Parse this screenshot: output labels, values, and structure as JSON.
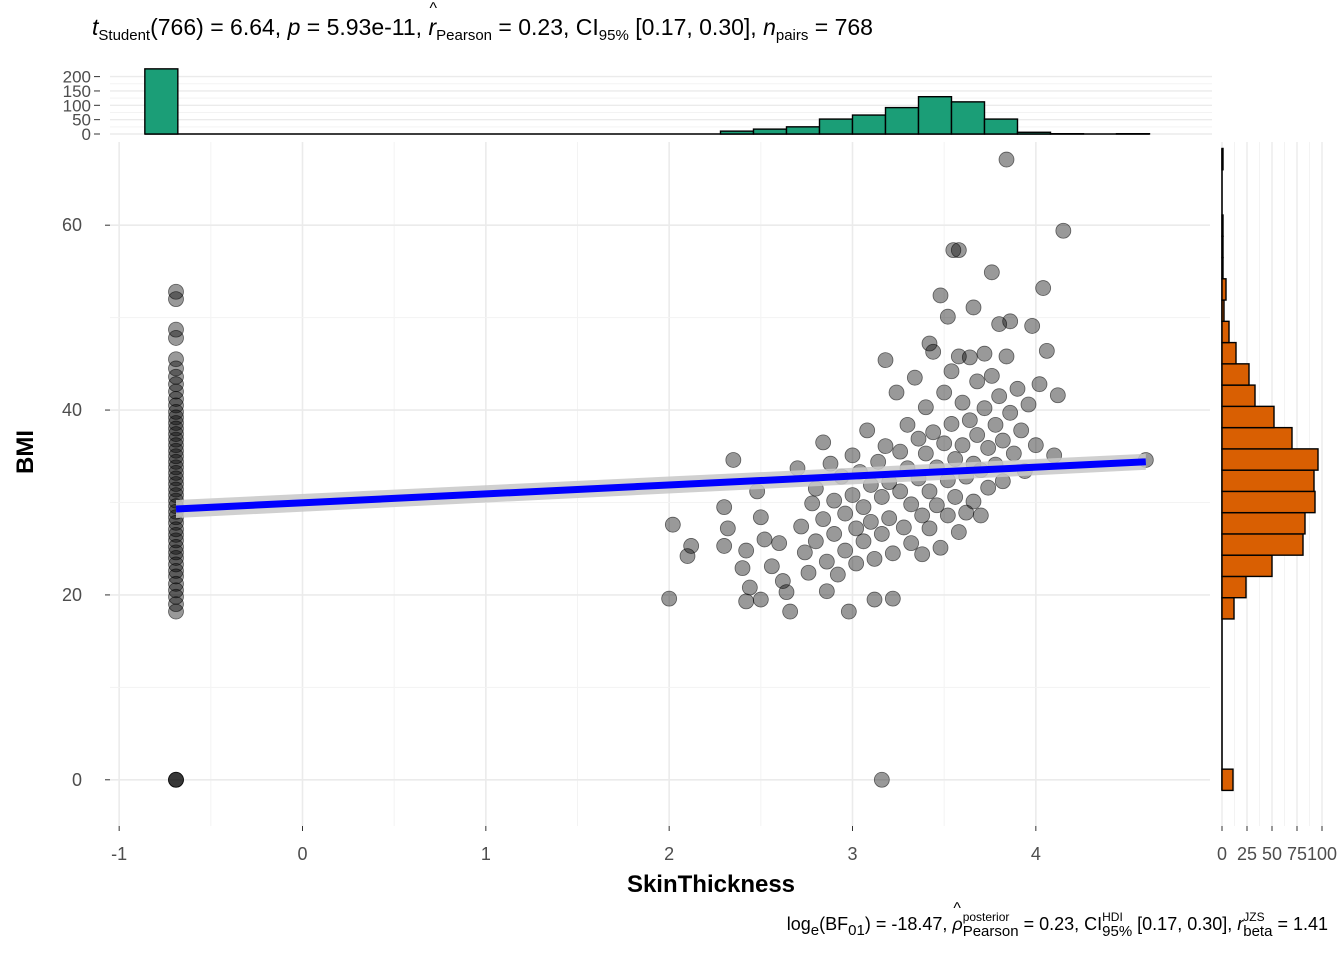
{
  "title": {
    "parts": {
      "t": "t",
      "t_sub": "Student",
      "df": "(766)",
      "eq1": " = 6.64, ",
      "p": "p",
      "p_eq": " = 5.93e-11, ",
      "r": "r",
      "r_sub": "Pearson",
      "r_eq": " = 0.23, CI",
      "ci_sub": "95%",
      "ci_val": " [0.17, 0.30], ",
      "n": "n",
      "n_sub": "pairs",
      "n_eq": " = 768"
    }
  },
  "caption": {
    "parts": {
      "log": "log",
      "log_sub": "e",
      "bf": "(BF",
      "bf_sub": "01",
      "bf_eq": ") = -18.47, ",
      "rho": "ρ",
      "rho_sup": "posterior",
      "rho_sub": "Pearson",
      "rho_eq": " = 0.23, CI",
      "hdi_sup": "HDI",
      "hdi_sub": "95%",
      "hdi_val": " [0.17, 0.30], ",
      "r": "r",
      "r_sup": "JZS",
      "r_sub": "beta",
      "r_eq": " = 1.41"
    }
  },
  "chart_data": {
    "type": "scatter",
    "xlabel": "SkinThickness",
    "ylabel": "BMI",
    "xlim": [
      -1.05,
      4.95
    ],
    "ylim": [
      -5,
      69
    ],
    "x_ticks": [
      -1,
      0,
      1,
      2,
      3,
      4
    ],
    "x_tick_labels": [
      "-1",
      "0",
      "1",
      "2",
      "3",
      "4"
    ],
    "y_ticks": [
      0,
      20,
      40,
      60
    ],
    "y_tick_labels": [
      "0",
      "20",
      "40",
      "60"
    ],
    "point_color": "#000000",
    "regression_line": {
      "color": "#0000FF",
      "x": [
        -0.69,
        4.6
      ],
      "y": [
        29.3,
        34.4
      ],
      "ci_band_color": "#C8C8C8"
    },
    "points_zero_skin": {
      "x": -0.69,
      "bmi_values": [
        0,
        0,
        0,
        18.2,
        19,
        19.8,
        20.5,
        21.2,
        22,
        22.6,
        23.3,
        24,
        24.6,
        25.2,
        25.9,
        26.5,
        27.1,
        27.8,
        28.4,
        29,
        29.6,
        30.2,
        30.8,
        31.4,
        32,
        32.6,
        33.2,
        33.8,
        34.4,
        35,
        35.6,
        36.2,
        36.8,
        37.4,
        38,
        38.6,
        39.2,
        39.8,
        40.5,
        41.2,
        42,
        42.8,
        43.6,
        44.5,
        45.5,
        47.8,
        48.7,
        52,
        52.8
      ]
    },
    "points_nonzero": [
      [
        2.02,
        27.6
      ],
      [
        2.0,
        19.6
      ],
      [
        2.12,
        25.3
      ],
      [
        2.1,
        24.2
      ],
      [
        2.3,
        29.5
      ],
      [
        2.32,
        27.2
      ],
      [
        2.3,
        25.3
      ],
      [
        2.35,
        34.6
      ],
      [
        2.4,
        22.9
      ],
      [
        2.42,
        24.8
      ],
      [
        2.44,
        20.8
      ],
      [
        2.42,
        19.3
      ],
      [
        2.48,
        31.2
      ],
      [
        2.5,
        28.4
      ],
      [
        2.52,
        26
      ],
      [
        2.5,
        19.5
      ],
      [
        2.56,
        23.1
      ],
      [
        2.6,
        25.6
      ],
      [
        2.62,
        21.5
      ],
      [
        2.64,
        20.3
      ],
      [
        2.66,
        18.2
      ],
      [
        2.7,
        33.7
      ],
      [
        2.72,
        27.4
      ],
      [
        2.74,
        24.6
      ],
      [
        2.76,
        22.4
      ],
      [
        2.78,
        29.9
      ],
      [
        2.8,
        25.8
      ],
      [
        2.8,
        31.5
      ],
      [
        2.84,
        36.5
      ],
      [
        2.84,
        28.2
      ],
      [
        2.86,
        23.6
      ],
      [
        2.86,
        20.4
      ],
      [
        2.88,
        34.2
      ],
      [
        2.9,
        30.2
      ],
      [
        2.9,
        26.6
      ],
      [
        2.92,
        22.2
      ],
      [
        2.94,
        32.8
      ],
      [
        2.96,
        28.8
      ],
      [
        2.96,
        24.8
      ],
      [
        2.98,
        18.2
      ],
      [
        3.0,
        35.1
      ],
      [
        3.0,
        30.8
      ],
      [
        3.02,
        27.2
      ],
      [
        3.02,
        23.4
      ],
      [
        3.04,
        33.3
      ],
      [
        3.06,
        29.5
      ],
      [
        3.06,
        25.8
      ],
      [
        3.08,
        37.8
      ],
      [
        3.1,
        31.9
      ],
      [
        3.1,
        27.9
      ],
      [
        3.12,
        23.9
      ],
      [
        3.12,
        19.5
      ],
      [
        3.14,
        34.4
      ],
      [
        3.16,
        30.6
      ],
      [
        3.16,
        26.6
      ],
      [
        3.18,
        45.4
      ],
      [
        3.18,
        36.1
      ],
      [
        3.2,
        32.2
      ],
      [
        3.2,
        28.3
      ],
      [
        3.22,
        24.5
      ],
      [
        3.22,
        19.6
      ],
      [
        3.24,
        41.9
      ],
      [
        3.26,
        35.5
      ],
      [
        3.26,
        31.2
      ],
      [
        3.28,
        27.3
      ],
      [
        3.3,
        38.4
      ],
      [
        3.3,
        33.7
      ],
      [
        3.32,
        29.8
      ],
      [
        3.32,
        25.6
      ],
      [
        3.34,
        43.5
      ],
      [
        3.36,
        36.9
      ],
      [
        3.36,
        32.6
      ],
      [
        3.38,
        28.6
      ],
      [
        3.38,
        24.4
      ],
      [
        3.4,
        40.3
      ],
      [
        3.4,
        35.3
      ],
      [
        3.42,
        31.2
      ],
      [
        3.42,
        27.2
      ],
      [
        3.44,
        46.3
      ],
      [
        3.44,
        37.6
      ],
      [
        3.46,
        33.8
      ],
      [
        3.46,
        29.7
      ],
      [
        3.48,
        25.1
      ],
      [
        3.5,
        41.9
      ],
      [
        3.5,
        36.4
      ],
      [
        3.52,
        32.4
      ],
      [
        3.52,
        28.6
      ],
      [
        3.54,
        44.2
      ],
      [
        3.54,
        38.5
      ],
      [
        3.56,
        34.7
      ],
      [
        3.56,
        30.6
      ],
      [
        3.58,
        57.3
      ],
      [
        3.58,
        26.8
      ],
      [
        3.6,
        40.8
      ],
      [
        3.6,
        36.2
      ],
      [
        3.62,
        32.8
      ],
      [
        3.62,
        28.9
      ],
      [
        3.64,
        45.7
      ],
      [
        3.64,
        38.9
      ],
      [
        3.66,
        34.2
      ],
      [
        3.66,
        30.1
      ],
      [
        3.68,
        43.1
      ],
      [
        3.68,
        37.3
      ],
      [
        3.7,
        33.5
      ],
      [
        3.7,
        28.6
      ],
      [
        3.72,
        46.1
      ],
      [
        3.72,
        40.2
      ],
      [
        3.74,
        35.9
      ],
      [
        3.74,
        31.6
      ],
      [
        3.76,
        54.9
      ],
      [
        3.76,
        43.7
      ],
      [
        3.78,
        38.4
      ],
      [
        3.78,
        34.1
      ],
      [
        3.8,
        49.3
      ],
      [
        3.8,
        41.5
      ],
      [
        3.82,
        36.7
      ],
      [
        3.82,
        32.3
      ],
      [
        3.84,
        67.1
      ],
      [
        3.84,
        45.8
      ],
      [
        3.86,
        39.7
      ],
      [
        3.88,
        35.3
      ],
      [
        3.9,
        42.3
      ],
      [
        3.92,
        37.8
      ],
      [
        3.94,
        33.4
      ],
      [
        3.96,
        40.6
      ],
      [
        3.98,
        49.1
      ],
      [
        4.0,
        36.2
      ],
      [
        4.02,
        42.8
      ],
      [
        4.04,
        53.2
      ],
      [
        4.06,
        46.4
      ],
      [
        4.1,
        35.1
      ],
      [
        4.12,
        41.6
      ],
      [
        4.15,
        59.4
      ],
      [
        3.16,
        0
      ],
      [
        4.6,
        34.6
      ],
      [
        3.55,
        57.3
      ],
      [
        3.48,
        52.4
      ],
      [
        3.52,
        50.1
      ],
      [
        3.66,
        51.1
      ],
      [
        3.86,
        49.6
      ],
      [
        3.42,
        47.2
      ],
      [
        3.58,
        45.8
      ]
    ],
    "top_histogram": {
      "variable": "SkinThickness",
      "fill": "#1B9E77",
      "y_ticks": [
        0,
        50,
        100,
        150,
        200
      ],
      "y_tick_labels": [
        "0",
        "50",
        "100",
        "150",
        "200"
      ],
      "bins": [
        {
          "x0": -0.86,
          "x1": -0.68,
          "count": 227
        },
        {
          "x0": 2.28,
          "x1": 2.46,
          "count": 10
        },
        {
          "x0": 2.46,
          "x1": 2.64,
          "count": 17
        },
        {
          "x0": 2.64,
          "x1": 2.82,
          "count": 25
        },
        {
          "x0": 2.82,
          "x1": 3.0,
          "count": 52
        },
        {
          "x0": 3.0,
          "x1": 3.18,
          "count": 66
        },
        {
          "x0": 3.18,
          "x1": 3.36,
          "count": 92
        },
        {
          "x0": 3.36,
          "x1": 3.54,
          "count": 130
        },
        {
          "x0": 3.54,
          "x1": 3.72,
          "count": 112
        },
        {
          "x0": 3.72,
          "x1": 3.9,
          "count": 52
        },
        {
          "x0": 3.9,
          "x1": 4.08,
          "count": 6
        },
        {
          "x0": 4.08,
          "x1": 4.26,
          "count": 1
        },
        {
          "x0": 4.44,
          "x1": 4.62,
          "count": 1
        }
      ]
    },
    "right_histogram": {
      "variable": "BMI",
      "fill": "#D95F02",
      "x_ticks": [
        0,
        25,
        50,
        75,
        100
      ],
      "x_tick_labels": [
        "0",
        "25",
        "50",
        "75",
        "100"
      ],
      "bins": [
        {
          "y0": -1.15,
          "y1": 1.15,
          "count": 11
        },
        {
          "y0": 17.4,
          "y1": 19.7,
          "count": 12
        },
        {
          "y0": 19.7,
          "y1": 22.0,
          "count": 24
        },
        {
          "y0": 22.0,
          "y1": 24.3,
          "count": 50
        },
        {
          "y0": 24.3,
          "y1": 26.6,
          "count": 81
        },
        {
          "y0": 26.6,
          "y1": 28.9,
          "count": 83
        },
        {
          "y0": 28.9,
          "y1": 31.2,
          "count": 93
        },
        {
          "y0": 31.2,
          "y1": 33.5,
          "count": 92
        },
        {
          "y0": 33.5,
          "y1": 35.8,
          "count": 96
        },
        {
          "y0": 35.8,
          "y1": 38.1,
          "count": 70
        },
        {
          "y0": 38.1,
          "y1": 40.4,
          "count": 52
        },
        {
          "y0": 40.4,
          "y1": 42.7,
          "count": 33
        },
        {
          "y0": 42.7,
          "y1": 45.0,
          "count": 27
        },
        {
          "y0": 45.0,
          "y1": 47.3,
          "count": 14
        },
        {
          "y0": 47.3,
          "y1": 49.6,
          "count": 7
        },
        {
          "y0": 49.6,
          "y1": 51.9,
          "count": 2
        },
        {
          "y0": 51.9,
          "y1": 54.2,
          "count": 4
        },
        {
          "y0": 54.2,
          "y1": 56.5,
          "count": 1
        },
        {
          "y0": 56.5,
          "y1": 58.8,
          "count": 1
        },
        {
          "y0": 58.8,
          "y1": 61.1,
          "count": 1
        },
        {
          "y0": 66.0,
          "y1": 68.3,
          "count": 1
        }
      ]
    }
  }
}
